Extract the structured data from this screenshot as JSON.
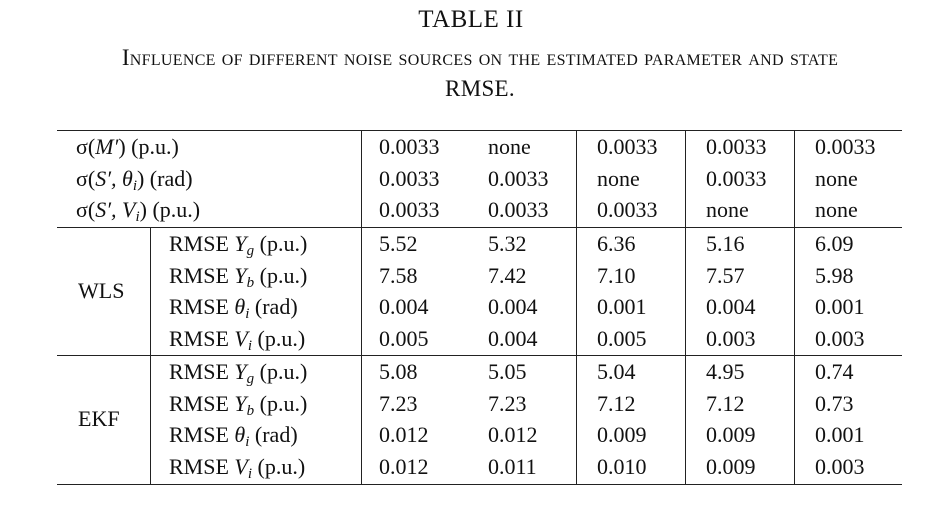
{
  "caption": {
    "label": "TABLE II",
    "text": "Influence of different noise sources on the estimated parameter and state RMSE."
  },
  "noise_rows": [
    {
      "label_fn": "σ(",
      "label_var": "M′",
      "label_unit": ") (p.u.)",
      "values": [
        "0.0033",
        "none",
        "0.0033",
        "0.0033",
        "0.0033"
      ]
    },
    {
      "label_fn": "σ(",
      "label_var": "S′, θ",
      "label_sub": "i",
      "label_unit": ") (rad)",
      "values": [
        "0.0033",
        "0.0033",
        "none",
        "0.0033",
        "none"
      ]
    },
    {
      "label_fn": "σ(",
      "label_var": "S′, V",
      "label_sub": "i",
      "label_unit": ") (p.u.)",
      "values": [
        "0.0033",
        "0.0033",
        "0.0033",
        "none",
        "none"
      ]
    }
  ],
  "groups": [
    {
      "name": "WLS",
      "rows": [
        {
          "metric": "RMSE",
          "var": "Y",
          "sub": "g",
          "unit": "(p.u.)",
          "values": [
            "5.52",
            "5.32",
            "6.36",
            "5.16",
            "6.09"
          ]
        },
        {
          "metric": "RMSE",
          "var": "Y",
          "sub": "b",
          "unit": "(p.u.)",
          "values": [
            "7.58",
            "7.42",
            "7.10",
            "7.57",
            "5.98"
          ]
        },
        {
          "metric": "RMSE",
          "var": "θ",
          "sub": "i",
          "unit": "(rad)",
          "values": [
            "0.004",
            "0.004",
            "0.001",
            "0.004",
            "0.001"
          ]
        },
        {
          "metric": "RMSE",
          "var": "V",
          "sub": "i",
          "unit": "(p.u.)",
          "values": [
            "0.005",
            "0.004",
            "0.005",
            "0.003",
            "0.003"
          ]
        }
      ]
    },
    {
      "name": "EKF",
      "rows": [
        {
          "metric": "RMSE",
          "var": "Y",
          "sub": "g",
          "unit": "(p.u.)",
          "values": [
            "5.08",
            "5.05",
            "5.04",
            "4.95",
            "0.74"
          ]
        },
        {
          "metric": "RMSE",
          "var": "Y",
          "sub": "b",
          "unit": "(p.u.)",
          "values": [
            "7.23",
            "7.23",
            "7.12",
            "7.12",
            "0.73"
          ]
        },
        {
          "metric": "RMSE",
          "var": "θ",
          "sub": "i",
          "unit": "(rad)",
          "values": [
            "0.012",
            "0.012",
            "0.009",
            "0.009",
            "0.001"
          ]
        },
        {
          "metric": "RMSE",
          "var": "V",
          "sub": "i",
          "unit": "(p.u.)",
          "values": [
            "0.012",
            "0.011",
            "0.010",
            "0.009",
            "0.003"
          ]
        }
      ]
    }
  ]
}
